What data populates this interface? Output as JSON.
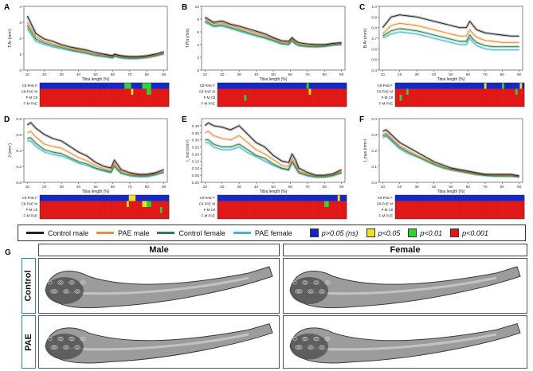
{
  "colors": {
    "control_male": "#222222",
    "pae_male": "#e8913a",
    "control_female": "#2e7d4a",
    "pae_female": "#45b6cc",
    "sig_ns": "#1428c8",
    "sig_05": "#f2e21e",
    "sig_01": "#35d035",
    "sig_001": "#e01818"
  },
  "heatmap_row_labels": [
    "Ctl-PAE F",
    "Ctl-PAE M",
    "F-M Ctl",
    "F-M PAE"
  ],
  "legend": {
    "lines": [
      "Control male",
      "PAE male",
      "Control female",
      "PAE female"
    ],
    "sig": [
      "p>0.05 (ns)",
      "p<0.05",
      "p<0.01",
      "p<0.001"
    ]
  },
  "panel_g": {
    "label": "G",
    "columns": [
      "Male",
      "Female"
    ],
    "rows": [
      "Control",
      "PAE"
    ]
  },
  "chart_data": [
    {
      "type": "line",
      "panel": "A",
      "ylabel": "T.Ar (mm²)",
      "xlabel": "Tibia length (%)",
      "xlim": [
        8,
        92
      ],
      "ylim": [
        0,
        4
      ],
      "xticks": [
        "10",
        "20",
        "30",
        "40",
        "50",
        "60",
        "70",
        "80",
        "90"
      ],
      "yticks": [
        "0",
        "1",
        "2",
        "3",
        "4"
      ],
      "x": [
        10,
        15,
        20,
        25,
        30,
        35,
        40,
        45,
        50,
        55,
        60,
        61,
        63,
        65,
        70,
        75,
        80,
        85,
        90
      ],
      "series": [
        {
          "name": "Control male",
          "values": [
            3.4,
            2.3,
            1.95,
            1.8,
            1.6,
            1.45,
            1.35,
            1.25,
            1.1,
            1.0,
            0.9,
            1.0,
            0.95,
            0.9,
            0.85,
            0.85,
            0.9,
            1.0,
            1.15
          ]
        },
        {
          "name": "PAE male",
          "values": [
            3.0,
            2.1,
            1.8,
            1.65,
            1.5,
            1.35,
            1.25,
            1.15,
            1.0,
            0.95,
            0.85,
            0.95,
            0.9,
            0.85,
            0.8,
            0.8,
            0.85,
            0.95,
            1.1
          ]
        },
        {
          "name": "Control female",
          "values": [
            2.8,
            1.95,
            1.7,
            1.55,
            1.42,
            1.28,
            1.18,
            1.08,
            0.95,
            0.88,
            0.8,
            0.9,
            0.85,
            0.8,
            0.75,
            0.75,
            0.8,
            0.9,
            1.05
          ]
        },
        {
          "name": "PAE female",
          "values": [
            2.6,
            1.8,
            1.6,
            1.45,
            1.35,
            1.22,
            1.12,
            1.02,
            0.9,
            0.83,
            0.75,
            0.85,
            0.8,
            0.75,
            0.7,
            0.72,
            0.78,
            0.88,
            1.0
          ]
        }
      ],
      "heatmap": [
        "BBBBBBBBBBBBBBBBBBBBBBBBBBBBBBBBBBBBBBGGGBBBBBGGGGBBBBBBBB",
        "RRRRRRRRRRRRRRRRRRRRRRRRRRRRRRRRRRRRRRRRRYRRRRRRGGRRRRRRRR",
        "RRRRRRRRRRRRRRRRRRRRRRRRRRRRRRRRRRRRRRRRRRRRRRRRRRRRRRRRRR",
        "RRRRRRRRRRRRRRRRRRRRRRRRRRRRRRRRRRRRRRRRRRRRRRRRRRRRRRRRRR"
      ]
    },
    {
      "type": "line",
      "panel": "B",
      "ylabel": "T.Pm (mm)",
      "xlabel": "Tibia length (%)",
      "xlim": [
        8,
        92
      ],
      "ylim": [
        0,
        10
      ],
      "xticks": [
        "10",
        "20",
        "30",
        "40",
        "50",
        "60",
        "70",
        "80",
        "90"
      ],
      "yticks": [
        "0",
        "2",
        "4",
        "6",
        "8",
        "10"
      ],
      "x": [
        10,
        15,
        20,
        25,
        30,
        35,
        40,
        45,
        50,
        55,
        59,
        61,
        63,
        65,
        70,
        75,
        80,
        85,
        90
      ],
      "series": [
        {
          "name": "Control male",
          "values": [
            8.3,
            7.5,
            7.7,
            7.2,
            6.9,
            6.5,
            6.1,
            5.7,
            5.1,
            4.6,
            4.5,
            5.1,
            4.6,
            4.3,
            4.1,
            4.0,
            4.0,
            4.2,
            4.3
          ]
        },
        {
          "name": "PAE male",
          "values": [
            8.0,
            7.3,
            7.4,
            7.0,
            6.6,
            6.2,
            5.8,
            5.4,
            4.9,
            4.4,
            4.3,
            4.9,
            4.4,
            4.1,
            3.9,
            3.85,
            3.9,
            4.1,
            4.2
          ]
        },
        {
          "name": "Control female",
          "values": [
            7.7,
            7.0,
            7.1,
            6.7,
            6.3,
            5.9,
            5.5,
            5.1,
            4.7,
            4.2,
            4.1,
            4.7,
            4.2,
            3.9,
            3.75,
            3.7,
            3.75,
            3.95,
            4.05
          ]
        },
        {
          "name": "PAE female",
          "values": [
            7.5,
            6.8,
            6.9,
            6.5,
            6.1,
            5.7,
            5.3,
            5.0,
            4.5,
            4.05,
            3.95,
            4.5,
            4.05,
            3.8,
            3.65,
            3.6,
            3.7,
            3.9,
            4.0
          ]
        }
      ],
      "heatmap": [
        "BBBBBBBBBBBBBBBBBBBBBBBBBBBBBBBBBBBBBBBBGBBBBBBBBBBBBBBBBB",
        "RRRRRRRRRRRRRRRRRRRRRRRRRRRRRRRRRRRRRRRRRYRRRRRRRRRRRRRRRR",
        "RRRRRRRRRRRRGRRRRRRRRRRRRRRRRRRRRRRRRRRRRRRRRRRRRRRRRRRRRR",
        "RRRRRRRRRRRRRRRRRRRRRRRRRRRRRRRRRRRRRRRRRRRRRRRRRRRRRRRRRR"
      ]
    },
    {
      "type": "line",
      "panel": "C",
      "ylabel": "B.Ar (mm²)",
      "xlabel": "Tibia length (%)",
      "xlim": [
        8,
        92
      ],
      "ylim": [
        0.4,
        1.0
      ],
      "xticks": [
        "10",
        "20",
        "30",
        "40",
        "50",
        "60",
        "70",
        "80",
        "90"
      ],
      "yticks": [
        "0.4",
        "0.5",
        "0.6",
        "0.7",
        "0.8",
        "0.9",
        "1.0"
      ],
      "x": [
        10,
        15,
        20,
        25,
        30,
        35,
        40,
        45,
        50,
        55,
        59,
        61,
        63,
        65,
        70,
        75,
        80,
        85,
        90
      ],
      "series": [
        {
          "name": "Control male",
          "values": [
            0.8,
            0.9,
            0.92,
            0.91,
            0.9,
            0.88,
            0.86,
            0.84,
            0.82,
            0.8,
            0.8,
            0.86,
            0.82,
            0.78,
            0.75,
            0.74,
            0.73,
            0.72,
            0.72
          ]
        },
        {
          "name": "PAE male",
          "values": [
            0.74,
            0.82,
            0.84,
            0.83,
            0.82,
            0.8,
            0.78,
            0.76,
            0.74,
            0.72,
            0.72,
            0.78,
            0.74,
            0.71,
            0.68,
            0.67,
            0.66,
            0.66,
            0.66
          ]
        },
        {
          "name": "Control female",
          "values": [
            0.72,
            0.77,
            0.79,
            0.78,
            0.77,
            0.75,
            0.73,
            0.71,
            0.69,
            0.67,
            0.67,
            0.73,
            0.69,
            0.66,
            0.63,
            0.62,
            0.62,
            0.62,
            0.62
          ]
        },
        {
          "name": "PAE female",
          "values": [
            0.7,
            0.74,
            0.76,
            0.75,
            0.74,
            0.72,
            0.7,
            0.68,
            0.66,
            0.64,
            0.64,
            0.7,
            0.66,
            0.63,
            0.6,
            0.59,
            0.59,
            0.59,
            0.59
          ]
        }
      ],
      "heatmap": [
        "BBBBBBBBBBBBBBBBBBBBBBBBBBBBBBBBBBBBBBBBYBBBBBBBGBBBBBBBYB",
        "RRRRRGRRRRRRRRRRRRRRRRRRRRRRRRRRRRRRRRRRRRRRRRRRRRRRRRGRRR",
        "RRGRRRRRRRRRRRRRRRRRRRRRRRRRRRRRRRRRRRRRRRRRRRRRRRRRRRRRRR",
        "RRRRRRRRRRRRRRRRRRRRRRRRRRRRRRRRRRRRRRRRRRRRRRRRRRRRRRRRRR"
      ]
    },
    {
      "type": "line",
      "panel": "D",
      "ylabel": "J (mm⁴)",
      "xlabel": "Tibia length (%)",
      "xlim": [
        8,
        92
      ],
      "ylim": [
        0,
        0.8
      ],
      "xticks": [
        "10",
        "20",
        "30",
        "40",
        "50",
        "60",
        "70",
        "80",
        "90"
      ],
      "yticks": [
        "0.0",
        "0.2",
        "0.4",
        "0.6",
        "0.8"
      ],
      "x": [
        10,
        12,
        15,
        20,
        25,
        30,
        35,
        40,
        45,
        50,
        55,
        59,
        61,
        63,
        65,
        70,
        75,
        80,
        85,
        90
      ],
      "series": [
        {
          "name": "Control male",
          "values": [
            0.72,
            0.75,
            0.68,
            0.6,
            0.55,
            0.52,
            0.45,
            0.38,
            0.33,
            0.25,
            0.2,
            0.18,
            0.28,
            0.22,
            0.16,
            0.12,
            0.1,
            0.1,
            0.12,
            0.16
          ]
        },
        {
          "name": "PAE male",
          "values": [
            0.62,
            0.64,
            0.57,
            0.48,
            0.45,
            0.43,
            0.37,
            0.31,
            0.27,
            0.21,
            0.17,
            0.15,
            0.24,
            0.18,
            0.14,
            0.1,
            0.09,
            0.09,
            0.11,
            0.14
          ]
        },
        {
          "name": "Control female",
          "values": [
            0.55,
            0.56,
            0.49,
            0.41,
            0.38,
            0.36,
            0.31,
            0.26,
            0.23,
            0.18,
            0.15,
            0.13,
            0.21,
            0.16,
            0.12,
            0.09,
            0.08,
            0.08,
            0.1,
            0.13
          ]
        },
        {
          "name": "PAE female",
          "values": [
            0.52,
            0.52,
            0.45,
            0.38,
            0.35,
            0.33,
            0.29,
            0.24,
            0.21,
            0.17,
            0.14,
            0.12,
            0.2,
            0.15,
            0.11,
            0.08,
            0.07,
            0.07,
            0.09,
            0.12
          ]
        }
      ],
      "heatmap": [
        "BBBBBBBBBBBBBBBBBBBBBBBBBBBBBBBBBBBBBBBBYYYBBBBBBBBBBBBBBB",
        "RRRRRRRRRRRRRRRRRRRRRRRRRRRRRRRRRRRRRRRYRRRRRRYYGGRRRRRRRR",
        "RRRRRRRRRRRRRRRRRRRRRRRRRRRRRRRRRRRRRRRRRRRRRRRRRRRRRRGRRR",
        "RRRRRRRRRRRRRRRRRRRRRRRRRRRRRRRRRRRRRRRRRRRRRRRRRRRRRRRRRR"
      ]
    },
    {
      "type": "line",
      "panel": "E",
      "ylabel": "I_min (mm⁴)",
      "xlabel": "Tibia length (%)",
      "xlim": [
        8,
        92
      ],
      "ylim": [
        0,
        0.45
      ],
      "xticks": [
        "10",
        "20",
        "30",
        "40",
        "50",
        "60",
        "70",
        "80",
        "90"
      ],
      "yticks": [
        "0.00",
        "0.05",
        "0.10",
        "0.15",
        "0.20",
        "0.25",
        "0.30",
        "0.35",
        "0.40"
      ],
      "x": [
        10,
        12,
        15,
        20,
        25,
        30,
        35,
        40,
        45,
        50,
        55,
        59,
        61,
        63,
        65,
        70,
        75,
        80,
        85,
        90
      ],
      "series": [
        {
          "name": "Control male",
          "values": [
            0.4,
            0.42,
            0.4,
            0.39,
            0.37,
            0.4,
            0.34,
            0.28,
            0.25,
            0.19,
            0.15,
            0.14,
            0.2,
            0.16,
            0.1,
            0.07,
            0.05,
            0.05,
            0.06,
            0.09
          ]
        },
        {
          "name": "PAE male",
          "values": [
            0.35,
            0.36,
            0.33,
            0.31,
            0.3,
            0.33,
            0.28,
            0.23,
            0.2,
            0.16,
            0.12,
            0.11,
            0.17,
            0.13,
            0.08,
            0.06,
            0.045,
            0.045,
            0.055,
            0.08
          ]
        },
        {
          "name": "Control female",
          "values": [
            0.3,
            0.3,
            0.27,
            0.25,
            0.25,
            0.27,
            0.23,
            0.19,
            0.17,
            0.13,
            0.1,
            0.09,
            0.15,
            0.11,
            0.07,
            0.05,
            0.04,
            0.04,
            0.05,
            0.07
          ]
        },
        {
          "name": "PAE female",
          "values": [
            0.28,
            0.28,
            0.25,
            0.23,
            0.23,
            0.25,
            0.21,
            0.18,
            0.15,
            0.12,
            0.095,
            0.085,
            0.14,
            0.1,
            0.065,
            0.045,
            0.035,
            0.035,
            0.045,
            0.065
          ]
        }
      ],
      "heatmap": [
        "BBBBBBBBBBBBBBBBBBBBBBBBBBBBBBBBBBBBBBBBBBBBBBBBBBBBBBYBBB",
        "RRRRRRRRRRRRRRRRRRRRRRRRRRRRRRRRRRRRRRRRRRRRRRRRGGRRRRRRRR",
        "RRRRRRRRRRRRRRRRRRRRRRRRRRRRRRRRRRRRRRRRRRRRRRRRRRRRRRRRRR",
        "RRRRRRRRRRRRRRRRRRRRRRRRRRRRRRRRRRRRRRRRRRRRRRRRRRRRRRRRRR"
      ]
    },
    {
      "type": "line",
      "panel": "F",
      "ylabel": "I_max (mm⁴)",
      "xlabel": "Tibia length (%)",
      "xlim": [
        8,
        92
      ],
      "ylim": [
        0,
        0.4
      ],
      "xticks": [
        "10",
        "20",
        "30",
        "40",
        "50",
        "60",
        "70",
        "80",
        "90"
      ],
      "yticks": [
        "0.0",
        "0.1",
        "0.2",
        "0.3",
        "0.4"
      ],
      "x": [
        10,
        12,
        15,
        20,
        25,
        30,
        35,
        40,
        45,
        50,
        55,
        60,
        65,
        70,
        75,
        80,
        85,
        90
      ],
      "series": [
        {
          "name": "Control male",
          "values": [
            0.32,
            0.33,
            0.3,
            0.25,
            0.22,
            0.19,
            0.16,
            0.13,
            0.11,
            0.09,
            0.08,
            0.07,
            0.06,
            0.05,
            0.05,
            0.05,
            0.05,
            0.04
          ]
        },
        {
          "name": "PAE male",
          "values": [
            0.3,
            0.31,
            0.28,
            0.23,
            0.2,
            0.17,
            0.145,
            0.12,
            0.1,
            0.085,
            0.075,
            0.065,
            0.055,
            0.05,
            0.045,
            0.045,
            0.045,
            0.04
          ]
        },
        {
          "name": "Control female",
          "values": [
            0.29,
            0.3,
            0.27,
            0.22,
            0.19,
            0.165,
            0.14,
            0.115,
            0.095,
            0.08,
            0.07,
            0.06,
            0.05,
            0.045,
            0.04,
            0.04,
            0.04,
            0.035
          ]
        },
        {
          "name": "PAE female",
          "values": [
            0.28,
            0.29,
            0.26,
            0.21,
            0.18,
            0.16,
            0.135,
            0.11,
            0.09,
            0.077,
            0.068,
            0.058,
            0.048,
            0.042,
            0.038,
            0.038,
            0.038,
            0.033
          ]
        }
      ],
      "heatmap": [
        "BBBBBBBBBBBBBBBBBBBBBBBBBBBBBBBBBBBBBBBBBBBBBBBBBBBBBBBBBB",
        "RRRRRRRRRRRRRRRRRRRRRRRRRRRRRRRRRRRRRRRRRRRRRRRRRRRRRRRRRR",
        "RRRRRRRRRRRRRRRRRRRRRRRRRRRRRRRRRRRRRRRRRRRRRRRRRRRRRRRRRR",
        "RRRRRRRRRRRRRRRRRRRRRRRRRRRRRRRRRRRRRRRRRRRRRRRRRRRRRRRRRR"
      ]
    }
  ]
}
